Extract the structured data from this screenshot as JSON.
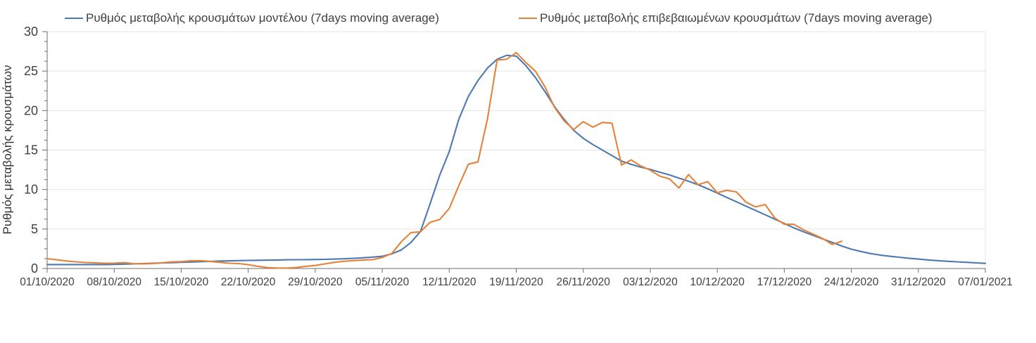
{
  "chart_data": {
    "type": "line",
    "title": "",
    "ylabel": "Ρυθμός μεταβολής κρουσμάτων",
    "xlabel": "",
    "ylim": [
      0,
      30
    ],
    "y_ticks": [
      0,
      5,
      10,
      15,
      20,
      25,
      30
    ],
    "y_minor_tick_step": 1.25,
    "grid": "horizontal",
    "legend_position": "top",
    "x_tick_labels": [
      "01/10/2020",
      "08/10/2020",
      "15/10/2020",
      "22/10/2020",
      "29/10/2020",
      "05/11/2020",
      "12/11/2020",
      "19/11/2020",
      "26/11/2020",
      "03/12/2020",
      "10/12/2020",
      "17/12/2020",
      "24/12/2020",
      "31/12/2020",
      "07/01/2021"
    ],
    "x_tick_step_days": 7,
    "x_total_days": 98,
    "colors": {
      "model_line": "#4d79b2",
      "confirmed_line": "#e5823a",
      "gridline": "#e4e4e4",
      "axis": "#6e6e6e",
      "tick_text": "#404040",
      "background": "#ffffff"
    },
    "series": [
      {
        "name": "Ρυθμός μεταβολής κρουσμάτων μοντέλου (7days moving average)",
        "color": "#4d79b2",
        "start_day": 0,
        "values": [
          0.5,
          0.5,
          0.5,
          0.5,
          0.5,
          0.5,
          0.5,
          0.52,
          0.55,
          0.58,
          0.62,
          0.66,
          0.7,
          0.74,
          0.78,
          0.82,
          0.86,
          0.9,
          0.94,
          0.97,
          1.0,
          1.02,
          1.04,
          1.06,
          1.08,
          1.1,
          1.11,
          1.12,
          1.14,
          1.16,
          1.19,
          1.23,
          1.28,
          1.35,
          1.44,
          1.55,
          1.85,
          2.35,
          3.3,
          4.7,
          8.2,
          11.8,
          14.8,
          18.9,
          21.8,
          23.8,
          25.4,
          26.5,
          27.0,
          26.9,
          25.7,
          24.2,
          22.4,
          20.5,
          18.9,
          17.5,
          16.5,
          15.7,
          15.0,
          14.3,
          13.6,
          13.2,
          12.85,
          12.55,
          12.2,
          11.85,
          11.45,
          11.05,
          10.6,
          10.1,
          9.55,
          9.0,
          8.45,
          7.9,
          7.35,
          6.8,
          6.25,
          5.7,
          5.15,
          4.65,
          4.2,
          3.75,
          3.3,
          2.85,
          2.45,
          2.15,
          1.9,
          1.7,
          1.55,
          1.42,
          1.3,
          1.19,
          1.09,
          1.0,
          0.92,
          0.85,
          0.78,
          0.71,
          0.65
        ]
      },
      {
        "name": "Ρυθμός μεταβολής επιβεβαιωμένων κρουσμάτων (7days moving average)",
        "color": "#e5823a",
        "start_day": 0,
        "values": [
          1.25,
          1.1,
          0.95,
          0.85,
          0.76,
          0.7,
          0.66,
          0.68,
          0.74,
          0.62,
          0.58,
          0.63,
          0.72,
          0.84,
          0.87,
          0.97,
          1.0,
          0.9,
          0.78,
          0.68,
          0.62,
          0.48,
          0.28,
          0.12,
          0.06,
          0.05,
          0.12,
          0.28,
          0.38,
          0.58,
          0.78,
          0.92,
          1.0,
          1.06,
          1.12,
          1.4,
          1.9,
          3.4,
          4.55,
          4.65,
          5.85,
          6.2,
          7.6,
          10.5,
          13.2,
          13.5,
          19.0,
          26.4,
          26.5,
          27.35,
          26.1,
          25.0,
          23.0,
          20.4,
          18.7,
          17.6,
          18.6,
          17.9,
          18.5,
          18.4,
          13.1,
          13.75,
          13.0,
          12.45,
          11.7,
          11.35,
          10.2,
          11.9,
          10.6,
          11.0,
          9.6,
          9.9,
          9.7,
          8.4,
          7.8,
          8.1,
          6.4,
          5.6,
          5.6,
          4.9,
          4.35,
          3.8,
          3.05,
          3.45
        ]
      }
    ]
  }
}
